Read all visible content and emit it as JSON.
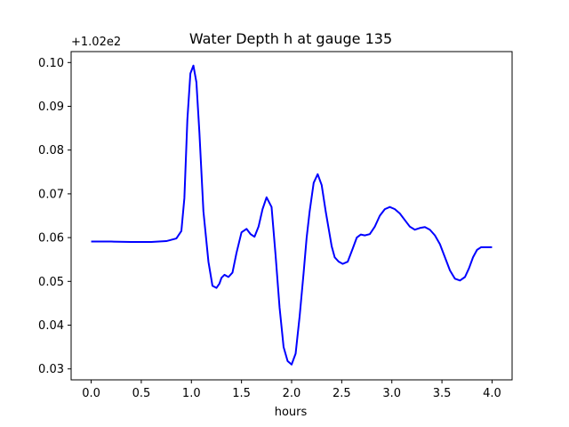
{
  "chart_data": {
    "type": "line",
    "title": "Water Depth h at gauge 135",
    "xlabel": "hours",
    "ylabel": "",
    "y_offset_text": "+1.02e2",
    "xlim": [
      -0.2,
      4.2
    ],
    "ylim": [
      0.0275,
      0.1025
    ],
    "xticks": [
      0.0,
      0.5,
      1.0,
      1.5,
      2.0,
      2.5,
      3.0,
      3.5,
      4.0
    ],
    "xtick_labels": [
      "0.0",
      "0.5",
      "1.0",
      "1.5",
      "2.0",
      "2.5",
      "3.0",
      "3.5",
      "4.0"
    ],
    "yticks": [
      0.03,
      0.04,
      0.05,
      0.06,
      0.07,
      0.08,
      0.09,
      0.1
    ],
    "ytick_labels": [
      "0.03",
      "0.04",
      "0.05",
      "0.06",
      "0.07",
      "0.08",
      "0.09",
      "0.10"
    ],
    "grid": false,
    "series": [
      {
        "color": "#0000ff",
        "x": [
          0.0,
          0.2,
          0.4,
          0.6,
          0.75,
          0.85,
          0.9,
          0.93,
          0.96,
          0.99,
          1.02,
          1.05,
          1.08,
          1.12,
          1.17,
          1.21,
          1.25,
          1.28,
          1.3,
          1.33,
          1.37,
          1.41,
          1.45,
          1.5,
          1.55,
          1.59,
          1.63,
          1.67,
          1.71,
          1.75,
          1.8,
          1.84,
          1.88,
          1.92,
          1.96,
          2.0,
          2.04,
          2.08,
          2.12,
          2.15,
          2.18,
          2.22,
          2.26,
          2.3,
          2.34,
          2.37,
          2.4,
          2.43,
          2.47,
          2.51,
          2.56,
          2.61,
          2.65,
          2.69,
          2.73,
          2.78,
          2.83,
          2.88,
          2.93,
          2.98,
          3.03,
          3.08,
          3.13,
          3.18,
          3.23,
          3.28,
          3.33,
          3.38,
          3.43,
          3.48,
          3.53,
          3.58,
          3.63,
          3.68,
          3.73,
          3.77,
          3.81,
          3.85,
          3.89,
          3.93,
          3.97,
          4.0
        ],
        "y": [
          0.0591,
          0.0591,
          0.059,
          0.059,
          0.0592,
          0.0598,
          0.0615,
          0.069,
          0.087,
          0.0975,
          0.0993,
          0.0955,
          0.084,
          0.066,
          0.0545,
          0.049,
          0.0485,
          0.0495,
          0.0508,
          0.0515,
          0.051,
          0.052,
          0.0565,
          0.0612,
          0.062,
          0.0608,
          0.0602,
          0.0625,
          0.0665,
          0.0692,
          0.067,
          0.056,
          0.044,
          0.035,
          0.0318,
          0.031,
          0.0335,
          0.042,
          0.052,
          0.06,
          0.066,
          0.0725,
          0.0745,
          0.072,
          0.066,
          0.062,
          0.058,
          0.0555,
          0.0545,
          0.054,
          0.0545,
          0.0575,
          0.06,
          0.0607,
          0.0605,
          0.0608,
          0.0625,
          0.065,
          0.0665,
          0.067,
          0.0665,
          0.0655,
          0.064,
          0.0625,
          0.0618,
          0.0622,
          0.0624,
          0.0618,
          0.0605,
          0.0585,
          0.0555,
          0.0525,
          0.0506,
          0.0502,
          0.051,
          0.053,
          0.0555,
          0.0572,
          0.0578,
          0.0578,
          0.0578,
          0.0578
        ]
      }
    ]
  }
}
